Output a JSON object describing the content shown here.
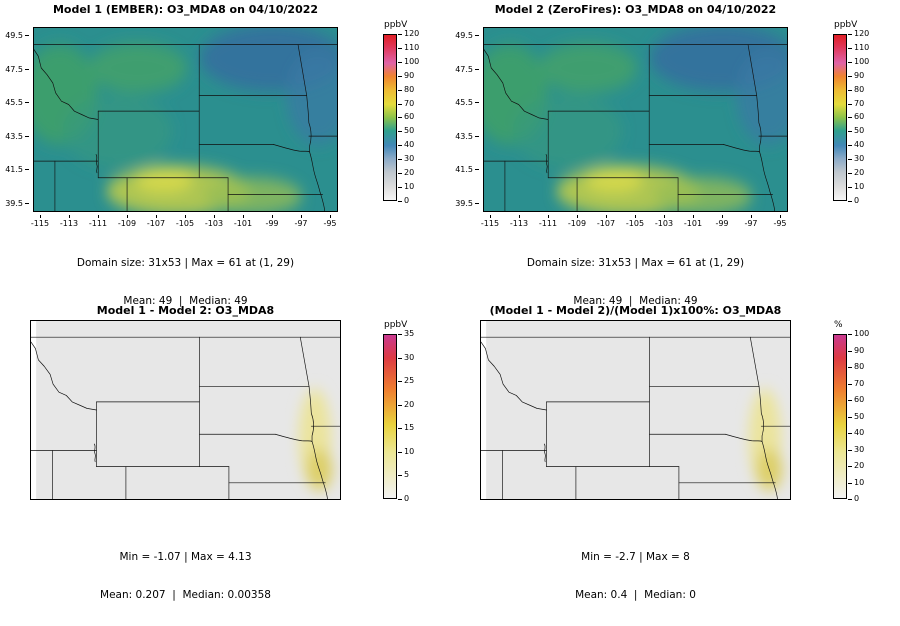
{
  "axes": {
    "lat_ticks": [
      "49.5",
      "47.5",
      "45.5",
      "43.5",
      "41.5",
      "39.5"
    ],
    "lon_ticks": [
      "-115",
      "-113",
      "-111",
      "-109",
      "-107",
      "-105",
      "-103",
      "-101",
      "-99",
      "-97",
      "-95"
    ]
  },
  "panels": [
    {
      "title": "Model 1 (EMBER): O3_MDA8 on 04/10/2022",
      "stats_line1": "Domain size: 31x53 | Max = 61 at (1, 29)",
      "stats_line2": "Mean: 49  |  Median: 49",
      "colorbar_unit": "ppbV",
      "colorbar_ticks": [
        "120",
        "110",
        "100",
        "90",
        "80",
        "70",
        "60",
        "50",
        "40",
        "30",
        "20",
        "10",
        "0"
      ]
    },
    {
      "title": "Model 2 (ZeroFires): O3_MDA8 on 04/10/2022",
      "stats_line1": "Domain size: 31x53 | Max = 61 at (1, 29)",
      "stats_line2": "Mean: 49  |  Median: 49",
      "colorbar_unit": "ppbV",
      "colorbar_ticks": [
        "120",
        "110",
        "100",
        "90",
        "80",
        "70",
        "60",
        "50",
        "40",
        "30",
        "20",
        "10",
        "0"
      ]
    },
    {
      "title": "Model 1 - Model 2: O3_MDA8",
      "stats_line1": "Min = -1.07 | Max = 4.13",
      "stats_line2": "Mean: 0.207  |  Median: 0.00358",
      "colorbar_unit": "ppbV",
      "colorbar_ticks": [
        "35",
        "30",
        "25",
        "20",
        "15",
        "10",
        "5",
        "0"
      ]
    },
    {
      "title": "(Model 1 - Model 2)/(Model 1)x100%: O3_MDA8",
      "stats_line1": "Min = -2.7 | Max = 8",
      "stats_line2": "Mean: 0.4  |  Median: 0",
      "colorbar_unit": "%",
      "colorbar_ticks": [
        "100",
        "90",
        "80",
        "70",
        "60",
        "50",
        "40",
        "30",
        "20",
        "10",
        "0"
      ]
    }
  ],
  "chart_data": [
    {
      "type": "heatmap",
      "panel": "top-left",
      "title": "Model 1 (EMBER): O3_MDA8 on 04/10/2022",
      "model": "Model 1 (EMBER)",
      "variable": "O3_MDA8",
      "date": "04/10/2022",
      "unit": "ppbV",
      "x_ticks": [
        -115,
        -113,
        -111,
        -109,
        -107,
        -105,
        -103,
        -101,
        -99,
        -97,
        -95
      ],
      "y_ticks": [
        49.5,
        47.5,
        45.5,
        43.5,
        41.5,
        39.5
      ],
      "x_range": [
        -115.5,
        -94.5
      ],
      "y_range": [
        39,
        50
      ],
      "colorbar_range": [
        0,
        120
      ],
      "colorbar_ticks": [
        0,
        10,
        20,
        30,
        40,
        50,
        60,
        70,
        80,
        90,
        100,
        110,
        120
      ],
      "domain_size": "31x53",
      "max": 61,
      "max_location": "(1, 29)",
      "mean": 49,
      "median": 49,
      "field_summary": "teal/blue-green ozone field ~40-60 ppbV over northern Rockies/plains; bluer over North Dakota; yellow-green higher values over Colorado-Nebraska border area"
    },
    {
      "type": "heatmap",
      "panel": "top-right",
      "title": "Model 2 (ZeroFires): O3_MDA8 on 04/10/2022",
      "model": "Model 2 (ZeroFires)",
      "variable": "O3_MDA8",
      "date": "04/10/2022",
      "unit": "ppbV",
      "x_ticks": [
        -115,
        -113,
        -111,
        -109,
        -107,
        -105,
        -103,
        -101,
        -99,
        -97,
        -95
      ],
      "y_ticks": [
        49.5,
        47.5,
        45.5,
        43.5,
        41.5,
        39.5
      ],
      "x_range": [
        -115.5,
        -94.5
      ],
      "y_range": [
        39,
        50
      ],
      "colorbar_range": [
        0,
        120
      ],
      "colorbar_ticks": [
        0,
        10,
        20,
        30,
        40,
        50,
        60,
        70,
        80,
        90,
        100,
        110,
        120
      ],
      "domain_size": "31x53",
      "max": 61,
      "max_location": "(1, 29)",
      "mean": 49,
      "median": 49,
      "field_summary": "visually identical to Model 1 field: teal/green ~40-60 ppbV with yellow-green maximum in south-central domain"
    },
    {
      "type": "heatmap",
      "panel": "bottom-left",
      "title": "Model 1 - Model 2: O3_MDA8",
      "variable": "O3_MDA8",
      "unit": "ppbV",
      "colorbar_range": [
        0,
        35
      ],
      "colorbar_ticks": [
        0,
        5,
        10,
        15,
        20,
        25,
        30,
        35
      ],
      "min": -1.07,
      "max": 4.13,
      "mean": 0.207,
      "median": 0.00358,
      "field_summary": "near-zero (light gray) difference everywhere except a faint yellow band along the eastern edge (eastern Nebraska)"
    },
    {
      "type": "heatmap",
      "panel": "bottom-right",
      "title": "(Model 1 - Model 2)/(Model 1)x100%: O3_MDA8",
      "variable": "O3_MDA8",
      "unit": "%",
      "colorbar_range": [
        0,
        100
      ],
      "colorbar_ticks": [
        0,
        10,
        20,
        30,
        40,
        50,
        60,
        70,
        80,
        90,
        100
      ],
      "min": -2.7,
      "max": 8,
      "mean": 0.4,
      "median": 0,
      "field_summary": "near-zero (light gray) percent difference with faint yellow band along the eastern edge"
    }
  ]
}
